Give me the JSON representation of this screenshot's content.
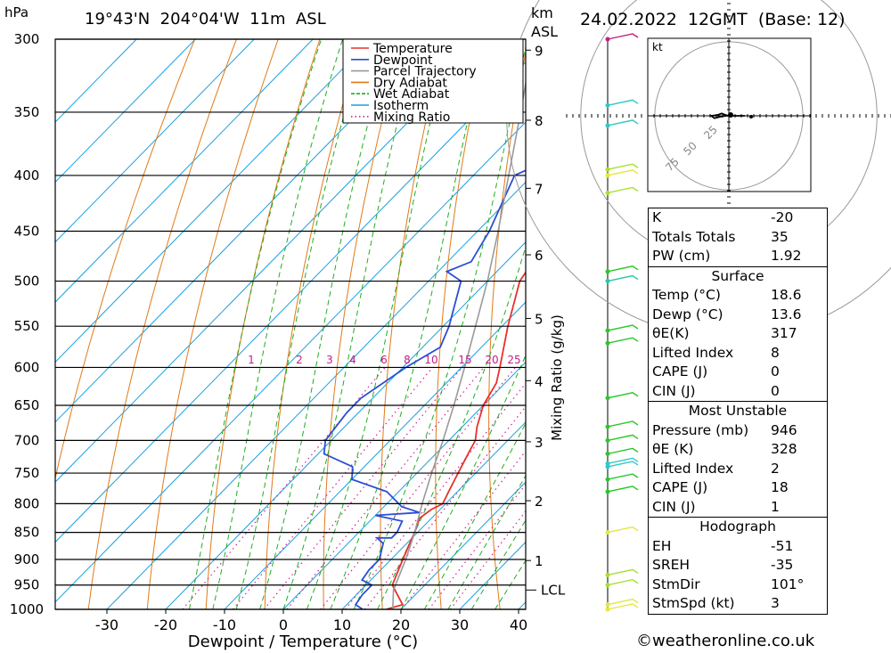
{
  "header": {
    "pressure_unit": "hPa",
    "location": "19°43'N  204°04'W  11m  ASL",
    "km_label": "km",
    "asl_label": "ASL",
    "datetime": "24.02.2022  12GMT  (Base: 12)"
  },
  "chart_data": {
    "type": "skew-t",
    "title": "19°43'N  204°04'W  11m  ASL",
    "xlabel": "Dewpoint / Temperature (°C)",
    "ylabel": "hPa",
    "y2label": "Mixing Ratio (g/kg)",
    "xlim": [
      -40,
      40
    ],
    "ylim": [
      1000,
      300
    ],
    "x_ticks": [
      -30,
      -20,
      -10,
      0,
      10,
      20,
      30,
      40
    ],
    "pressure_levels": [
      300,
      350,
      400,
      450,
      500,
      550,
      600,
      650,
      700,
      750,
      800,
      850,
      900,
      950,
      1000
    ],
    "km_ticks": [
      {
        "label": "1",
        "p": 902
      },
      {
        "label": "2",
        "p": 795
      },
      {
        "label": "3",
        "p": 702
      },
      {
        "label": "4",
        "p": 617
      },
      {
        "label": "5",
        "p": 541
      },
      {
        "label": "6",
        "p": 473
      },
      {
        "label": "7",
        "p": 411
      },
      {
        "label": "8",
        "p": 356
      },
      {
        "label": "9",
        "p": 307
      }
    ],
    "lcl_label": "LCL",
    "lcl_pressure": 960,
    "mixing_ratio_labels": [
      "1",
      "2",
      "3",
      "4",
      "6",
      "8",
      "10",
      "15",
      "20",
      "25"
    ],
    "mixing_ratio_values": [
      1,
      2,
      3,
      4,
      6,
      8,
      10,
      15,
      20,
      25
    ],
    "legend": [
      {
        "name": "Temperature",
        "color": "#e8302b",
        "dash": "solid"
      },
      {
        "name": "Dewpoint",
        "color": "#2a4fd6",
        "dash": "solid"
      },
      {
        "name": "Parcel Trajectory",
        "color": "#9a9a9a",
        "dash": "solid"
      },
      {
        "name": "Dry Adiabat",
        "color": "#e07a18",
        "dash": "solid"
      },
      {
        "name": "Wet Adiabat",
        "color": "#1fae1f",
        "dash": "dashed"
      },
      {
        "name": "Isotherm",
        "color": "#1aa0e0",
        "dash": "solid"
      },
      {
        "name": "Mixing Ratio",
        "color": "#d0209a",
        "dash": "dotted"
      }
    ],
    "series": [
      {
        "name": "Temperature",
        "points": [
          [
            1000,
            17.5
          ],
          [
            990,
            19.5
          ],
          [
            970,
            17.0
          ],
          [
            950,
            14.5
          ],
          [
            930,
            13.5
          ],
          [
            900,
            12.0
          ],
          [
            870,
            10.5
          ],
          [
            850,
            9.5
          ],
          [
            825,
            8.0
          ],
          [
            810,
            8.5
          ],
          [
            800,
            9.5
          ],
          [
            780,
            8.5
          ],
          [
            750,
            7.0
          ],
          [
            720,
            5.5
          ],
          [
            700,
            4.5
          ],
          [
            680,
            2.5
          ],
          [
            650,
            0.0
          ],
          [
            620,
            -1.5
          ],
          [
            600,
            -3.5
          ],
          [
            550,
            -9.0
          ],
          [
            500,
            -14.5
          ],
          [
            480,
            -15.5
          ],
          [
            450,
            -19.5
          ],
          [
            400,
            -26.5
          ],
          [
            380,
            -27.5
          ],
          [
            350,
            -31.5
          ],
          [
            325,
            -34.5
          ],
          [
            300,
            -38.0
          ]
        ]
      },
      {
        "name": "Dewpoint",
        "points": [
          [
            1000,
            13.5
          ],
          [
            990,
            11.5
          ],
          [
            970,
            11.0
          ],
          [
            950,
            11.0
          ],
          [
            940,
            8.5
          ],
          [
            920,
            8.0
          ],
          [
            900,
            8.0
          ],
          [
            870,
            6.0
          ],
          [
            860,
            4.0
          ],
          [
            860,
            6.5
          ],
          [
            850,
            6.5
          ],
          [
            830,
            5.5
          ],
          [
            820,
            0.0
          ],
          [
            815,
            7.0
          ],
          [
            805,
            3.0
          ],
          [
            780,
            -2.0
          ],
          [
            760,
            -10.0
          ],
          [
            740,
            -12.0
          ],
          [
            720,
            -19.0
          ],
          [
            700,
            -21.0
          ],
          [
            660,
            -22.0
          ],
          [
            640,
            -22.0
          ],
          [
            600,
            -19.5
          ],
          [
            575,
            -17.0
          ],
          [
            550,
            -19.0
          ],
          [
            500,
            -24.5
          ],
          [
            490,
            -28.5
          ],
          [
            480,
            -26.0
          ],
          [
            450,
            -28.0
          ],
          [
            400,
            -33.0
          ],
          [
            390,
            -30.5
          ],
          [
            385,
            -24.5
          ],
          [
            378,
            -29.5
          ],
          [
            370,
            -36.5
          ],
          [
            360,
            -36.5
          ],
          [
            345,
            -37.0
          ],
          [
            335,
            -34.0
          ],
          [
            330,
            -38.5
          ],
          [
            315,
            -40.0
          ],
          [
            305,
            -41.5
          ],
          [
            300,
            -43.5
          ]
        ]
      },
      {
        "name": "Parcel Trajectory",
        "points": [
          [
            1000,
            18.6
          ],
          [
            960,
            15.5
          ],
          [
            900,
            12.5
          ],
          [
            850,
            9.5
          ],
          [
            800,
            6.0
          ],
          [
            750,
            2.5
          ],
          [
            700,
            -1.0
          ],
          [
            650,
            -5.0
          ],
          [
            600,
            -9.5
          ],
          [
            550,
            -14.5
          ],
          [
            500,
            -20.0
          ],
          [
            450,
            -26.5
          ],
          [
            400,
            -34.0
          ],
          [
            350,
            -42.5
          ],
          [
            300,
            -52.5
          ]
        ]
      }
    ],
    "wind_barbs": [
      {
        "p": 1000,
        "color": "#e6e640"
      },
      {
        "p": 990,
        "color": "#e6e640"
      },
      {
        "p": 950,
        "color": "#a8e030"
      },
      {
        "p": 930,
        "color": "#a8e030"
      },
      {
        "p": 850,
        "color": "#e6e640"
      },
      {
        "p": 780,
        "color": "#28c828"
      },
      {
        "p": 760,
        "color": "#28c828"
      },
      {
        "p": 740,
        "color": "#30c8c8"
      },
      {
        "p": 735,
        "color": "#30c8c8"
      },
      {
        "p": 720,
        "color": "#28c828"
      },
      {
        "p": 700,
        "color": "#28c828"
      },
      {
        "p": 680,
        "color": "#28c828"
      },
      {
        "p": 640,
        "color": "#28c828"
      },
      {
        "p": 570,
        "color": "#28c828"
      },
      {
        "p": 555,
        "color": "#28c828"
      },
      {
        "p": 500,
        "color": "#28c8a0"
      },
      {
        "p": 490,
        "color": "#28c828"
      },
      {
        "p": 415,
        "color": "#a8e030"
      },
      {
        "p": 400,
        "color": "#e6e640"
      },
      {
        "p": 395,
        "color": "#a8e030"
      },
      {
        "p": 360,
        "color": "#30c8c8"
      },
      {
        "p": 345,
        "color": "#30c8c8"
      },
      {
        "p": 300,
        "color": "#c0207a"
      }
    ],
    "hodograph": {
      "unit": "kt",
      "ring_labels": [
        "25",
        "50",
        "75"
      ],
      "points": [
        [
          0,
          0
        ],
        [
          -4,
          1
        ],
        [
          -9,
          3
        ],
        [
          -14,
          1
        ],
        [
          -22,
          0
        ],
        [
          -18,
          -3
        ],
        [
          -10,
          -1
        ],
        [
          -4,
          0
        ],
        [
          20,
          0
        ]
      ]
    }
  },
  "indices": {
    "rows": [
      {
        "k": "K",
        "v": "-20"
      },
      {
        "k": "Totals Totals",
        "v": "35"
      },
      {
        "k": "PW (cm)",
        "v": "1.92"
      }
    ]
  },
  "surface": {
    "title": "Surface",
    "rows": [
      {
        "k": "Temp (°C)",
        "v": "18.6"
      },
      {
        "k": "Dewp (°C)",
        "v": "13.6"
      },
      {
        "k": "θE(K)",
        "v": "317"
      },
      {
        "k": "Lifted Index",
        "v": "8"
      },
      {
        "k": "CAPE (J)",
        "v": "0"
      },
      {
        "k": "CIN (J)",
        "v": "0"
      }
    ]
  },
  "most_unstable": {
    "title": "Most Unstable",
    "rows": [
      {
        "k": "Pressure (mb)",
        "v": "946"
      },
      {
        "k": "θE (K)",
        "v": "328"
      },
      {
        "k": "Lifted Index",
        "v": "2"
      },
      {
        "k": "CAPE (J)",
        "v": "18"
      },
      {
        "k": "CIN (J)",
        "v": "1"
      }
    ]
  },
  "hodograph_table": {
    "title": "Hodograph",
    "rows": [
      {
        "k": "EH",
        "v": "-51"
      },
      {
        "k": "SREH",
        "v": "-35"
      },
      {
        "k": "StmDir",
        "v": "101°"
      },
      {
        "k": "StmSpd (kt)",
        "v": "3"
      }
    ]
  },
  "footer": {
    "copyright": "©weatheronline.co.uk"
  }
}
